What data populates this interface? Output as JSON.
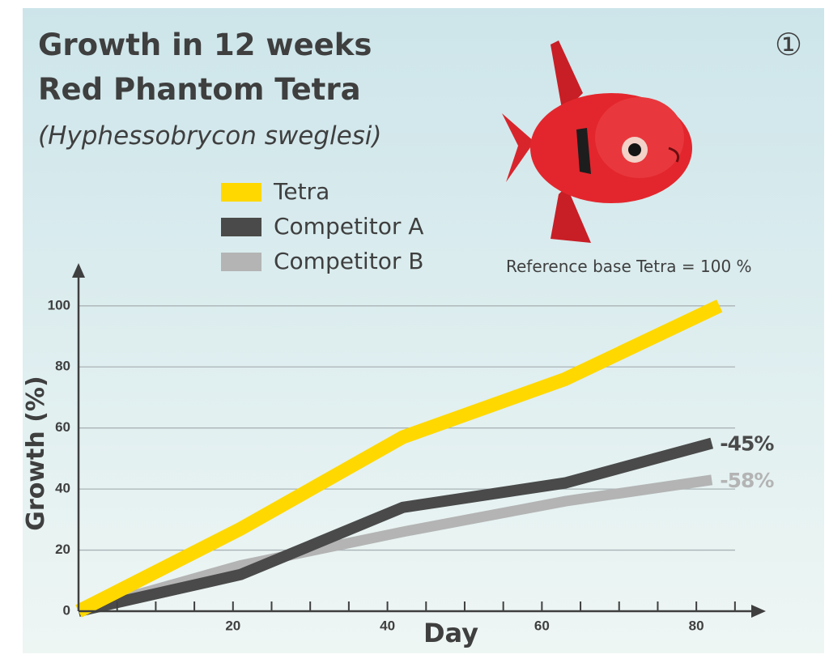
{
  "chart_data": {
    "type": "line",
    "title": "Growth in 12 weeks",
    "subtitle": "Red Phantom Tetra",
    "species": "(Hyphessobrycon sweglesi)",
    "badge": "①",
    "note": "Reference base Tetra = 100 %",
    "x_label": "Day",
    "y_label": "Growth (%)",
    "xlim": [
      0,
      89
    ],
    "ylim": [
      0,
      114
    ],
    "xticks": [
      20,
      40,
      60,
      80
    ],
    "xminorticks": [
      5,
      10,
      15,
      25,
      30,
      35,
      45,
      50,
      55,
      65,
      70,
      75,
      85
    ],
    "yticks": [
      0,
      20,
      40,
      60,
      80,
      100
    ],
    "grid": true,
    "series": [
      {
        "name": "Tetra",
        "color": "#ffd800",
        "x": [
          0,
          21,
          42,
          63,
          83
        ],
        "values": [
          0,
          27,
          57,
          76,
          100
        ]
      },
      {
        "name": "Competitor A",
        "color": "#4a4a4a",
        "x": [
          0,
          21,
          42,
          63,
          82
        ],
        "values": [
          0,
          12,
          34,
          42,
          55
        ],
        "end_label": "-45%"
      },
      {
        "name": "Competitor B",
        "color": "#b4b4b4",
        "x": [
          0,
          21,
          42,
          63,
          82
        ],
        "values": [
          0,
          15,
          26,
          36,
          43
        ],
        "end_label": "-58%"
      }
    ]
  }
}
